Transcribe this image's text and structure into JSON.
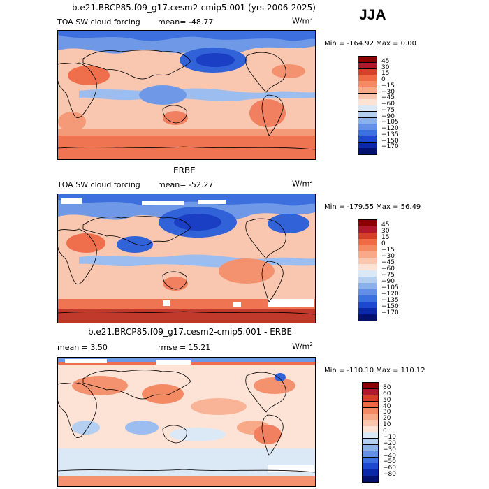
{
  "season": "JJA",
  "panels": [
    {
      "title": "b.e21.BRCP85.f09_g17.cesm2-cmip5.001 (yrs 2006-2025)",
      "left_label": "TOA SW cloud forcing",
      "mean_label": "mean= -48.77",
      "units": "W/m",
      "units_sup": "2",
      "minmax": "Min = -164.92 Max =    0.00",
      "colorbar_labels": [
        "45",
        "30",
        "15",
        "0",
        "−15",
        "−30",
        "−45",
        "−60",
        "−75",
        "−90",
        "−105",
        "−120",
        "−135",
        "−150",
        "−170"
      ],
      "colorbar_colors": [
        "#8b0000",
        "#b2182b",
        "#d6402b",
        "#ef6a45",
        "#f48a64",
        "#f8a988",
        "#fac6ae",
        "#fde3d6",
        "#dbe9f6",
        "#b4cff0",
        "#8bb1ea",
        "#6390e6",
        "#3c6fe0",
        "#1e48cf",
        "#0a28a8",
        "#03126e"
      ]
    },
    {
      "title": "ERBE",
      "left_label": "TOA SW cloud forcing",
      "mean_label": "mean= -52.27",
      "units": "W/m",
      "units_sup": "2",
      "minmax": "Min = -179.55 Max =  56.49",
      "colorbar_labels": [
        "45",
        "30",
        "15",
        "0",
        "−15",
        "−30",
        "−45",
        "−60",
        "−75",
        "−90",
        "−105",
        "−120",
        "−135",
        "−150",
        "−170"
      ],
      "colorbar_colors": [
        "#8b0000",
        "#b2182b",
        "#d6402b",
        "#ef6a45",
        "#f48a64",
        "#f8a988",
        "#fac6ae",
        "#fde3d6",
        "#dbe9f6",
        "#b4cff0",
        "#8bb1ea",
        "#6390e6",
        "#3c6fe0",
        "#1e48cf",
        "#0a28a8",
        "#03126e"
      ]
    },
    {
      "title": "b.e21.BRCP85.f09_g17.cesm2-cmip5.001 - ERBE",
      "left_label": "mean =    3.50",
      "mean_label": "rmse =   15.21",
      "units": "W/m",
      "units_sup": "2",
      "minmax": "Min = -110.10 Max = 110.12",
      "colorbar_labels": [
        "80",
        "60",
        "50",
        "40",
        "30",
        "20",
        "10",
        "0",
        "−10",
        "−20",
        "−30",
        "−40",
        "−50",
        "−60",
        "−80"
      ],
      "colorbar_colors": [
        "#8b0000",
        "#b2182b",
        "#d6402b",
        "#ef6a45",
        "#f48a64",
        "#f8a988",
        "#fac6ae",
        "#fde3d6",
        "#dbe9f6",
        "#b4cff0",
        "#8bb1ea",
        "#6390e6",
        "#3c6fe0",
        "#1e48cf",
        "#0a28a8",
        "#03126e"
      ]
    }
  ]
}
